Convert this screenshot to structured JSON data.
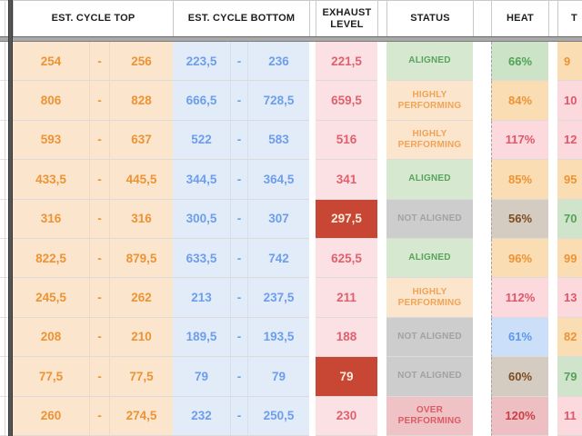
{
  "header": {
    "est_cycle_top": "EST. CYCLE TOP",
    "est_cycle_bottom": "EST. CYCLE BOTTOM",
    "exhaust_level": "EXHAUST LEVEL",
    "status": "STATUS",
    "heat": "HEAT",
    "t_partial": "T"
  },
  "labels": {
    "range_separator": "-"
  },
  "colors": {
    "alert_red_bg": "#c74634",
    "cycle_top_bg": "#fce5cd",
    "cycle_top_text": "#ec9335",
    "cycle_bottom_bg": "#e2ebf8",
    "cycle_bottom_text": "#6d9eeb",
    "exhaust_bg": "#fbe1e3",
    "exhaust_text": "#e0606e",
    "aligned_green": "#58a45c",
    "not_aligned_gray": "#a2a2a2",
    "over_performing_red": "#db5b63",
    "frozen_divider": "#565656"
  },
  "rows": [
    {
      "top_min": "254",
      "top_max": "256",
      "bot_min": "223,5",
      "bot_max": "236",
      "exhaust": "221,5",
      "exhaust_alert": false,
      "status": "ALIGNED",
      "status_kind": "aligned",
      "heat": "66%",
      "heat_kind": "green",
      "t": "9",
      "t_kind": "orange"
    },
    {
      "top_min": "806",
      "top_max": "828",
      "bot_min": "666,5",
      "bot_max": "728,5",
      "exhaust": "659,5",
      "exhaust_alert": false,
      "status": "HIGHLY PERFORMING",
      "status_kind": "highly",
      "heat": "84%",
      "heat_kind": "orange",
      "t": "10",
      "t_kind": "pink"
    },
    {
      "top_min": "593",
      "top_max": "637",
      "bot_min": "522",
      "bot_max": "583",
      "exhaust": "516",
      "exhaust_alert": false,
      "status": "HIGHLY PERFORMING",
      "status_kind": "highly",
      "heat": "117%",
      "heat_kind": "pink",
      "t": "12",
      "t_kind": "pink"
    },
    {
      "top_min": "433,5",
      "top_max": "445,5",
      "bot_min": "344,5",
      "bot_max": "364,5",
      "exhaust": "341",
      "exhaust_alert": false,
      "status": "ALIGNED",
      "status_kind": "aligned",
      "heat": "85%",
      "heat_kind": "orange",
      "t": "95",
      "t_kind": "orange"
    },
    {
      "top_min": "316",
      "top_max": "316",
      "bot_min": "300,5",
      "bot_max": "307",
      "exhaust": "297,5",
      "exhaust_alert": true,
      "status": "NOT ALIGNED",
      "status_kind": "notaligned",
      "heat": "56%",
      "heat_kind": "gray",
      "t": "70",
      "t_kind": "green"
    },
    {
      "top_min": "822,5",
      "top_max": "879,5",
      "bot_min": "633,5",
      "bot_max": "742",
      "exhaust": "625,5",
      "exhaust_alert": false,
      "status": "ALIGNED",
      "status_kind": "aligned",
      "heat": "96%",
      "heat_kind": "orange",
      "t": "99",
      "t_kind": "orange"
    },
    {
      "top_min": "245,5",
      "top_max": "262",
      "bot_min": "213",
      "bot_max": "237,5",
      "exhaust": "211",
      "exhaust_alert": false,
      "status": "HIGHLY PERFORMING",
      "status_kind": "highly",
      "heat": "112%",
      "heat_kind": "pink",
      "t": "13",
      "t_kind": "pink"
    },
    {
      "top_min": "208",
      "top_max": "210",
      "bot_min": "189,5",
      "bot_max": "193,5",
      "exhaust": "188",
      "exhaust_alert": false,
      "status": "NOT ALIGNED",
      "status_kind": "notaligned",
      "heat": "61%",
      "heat_kind": "blue",
      "t": "82",
      "t_kind": "orange"
    },
    {
      "top_min": "77,5",
      "top_max": "77,5",
      "bot_min": "79",
      "bot_max": "79",
      "exhaust": "79",
      "exhaust_alert": true,
      "status": "NOT ALIGNED",
      "status_kind": "notaligned",
      "heat": "60%",
      "heat_kind": "gray",
      "t": "79",
      "t_kind": "green"
    },
    {
      "top_min": "260",
      "top_max": "274,5",
      "bot_min": "232",
      "bot_max": "250,5",
      "exhaust": "230",
      "exhaust_alert": false,
      "status": "OVER PERFORMING",
      "status_kind": "over",
      "heat": "120%",
      "heat_kind": "red",
      "t": "11",
      "t_kind": "pink"
    }
  ]
}
